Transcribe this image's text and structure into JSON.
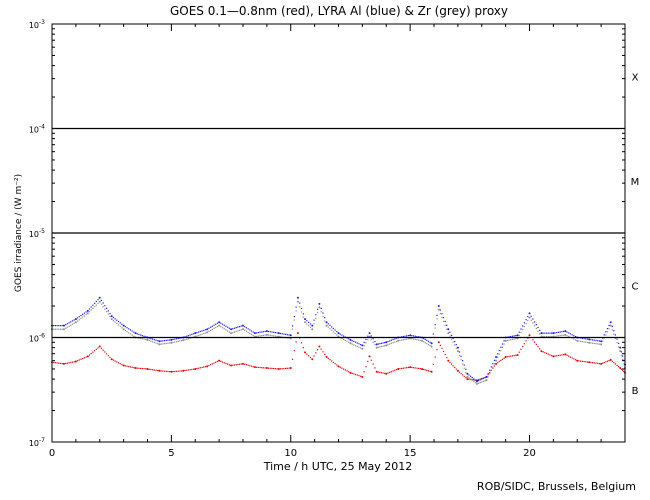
{
  "chart_data": {
    "type": "scatter",
    "title": "GOES 0.1—0.8nm (red), LYRA Al (blue) & Zr (grey) proxy",
    "xlabel": "Time / h UTC, 25 May 2012",
    "ylabel": "GOES irradiance / (W m⁻²)",
    "xlim": [
      0,
      24
    ],
    "ylim": [
      1e-07,
      0.001
    ],
    "yscale": "log",
    "grid": false,
    "x_ticks": [
      0,
      5,
      10,
      15,
      20
    ],
    "y_ticks": [
      {
        "value": 1e-07,
        "base": "10",
        "exp": "-7"
      },
      {
        "value": 1e-06,
        "base": "10",
        "exp": "-6"
      },
      {
        "value": 1e-05,
        "base": "10",
        "exp": "-5"
      },
      {
        "value": 0.0001,
        "base": "10",
        "exp": "-4"
      },
      {
        "value": 0.001,
        "base": "10",
        "exp": "-3"
      }
    ],
    "threshold_lines": [
      1e-06,
      1e-05,
      0.0001
    ],
    "flare_classes": [
      {
        "label": "X",
        "value": 0.000316
      },
      {
        "label": "M",
        "value": 3.16e-05
      },
      {
        "label": "C",
        "value": 3.16e-06
      },
      {
        "label": "B",
        "value": 3.16e-07
      }
    ],
    "series": [
      {
        "name": "GOES 0.1—0.8nm",
        "color": "#e00000",
        "x": [
          0,
          0.5,
          1.0,
          1.5,
          2.0,
          2.5,
          3.0,
          3.5,
          4.0,
          4.5,
          5.0,
          5.5,
          6.0,
          6.5,
          7.0,
          7.5,
          8.0,
          8.5,
          9.0,
          9.5,
          10.0,
          10.3,
          10.6,
          10.9,
          11.2,
          11.5,
          12.0,
          12.5,
          13.0,
          13.3,
          13.6,
          14.0,
          14.5,
          15.0,
          15.5,
          15.9,
          16.2,
          16.6,
          17.0,
          17.4,
          17.8,
          18.2,
          18.6,
          19.0,
          19.5,
          20.0,
          20.5,
          21.0,
          21.5,
          22.0,
          22.5,
          23.0,
          23.4,
          23.8,
          24.0
        ],
        "y": [
          5.8e-07,
          5.6e-07,
          5.9e-07,
          6.6e-07,
          8.2e-07,
          6.2e-07,
          5.4e-07,
          5.1e-07,
          5e-07,
          4.8e-07,
          4.7e-07,
          4.8e-07,
          5e-07,
          5.3e-07,
          6e-07,
          5.4e-07,
          5.6e-07,
          5.2e-07,
          5.1e-07,
          5e-07,
          5.1e-07,
          1.1e-06,
          7.2e-07,
          6.2e-07,
          8.2e-07,
          6.5e-07,
          5.3e-07,
          4.6e-07,
          4.2e-07,
          6.6e-07,
          4.7e-07,
          4.5e-07,
          5e-07,
          5.2e-07,
          5e-07,
          4.7e-07,
          9e-07,
          6e-07,
          4.8e-07,
          4e-07,
          3.9e-07,
          4.2e-07,
          5.6e-07,
          6.5e-07,
          6.8e-07,
          1.05e-06,
          7.4e-07,
          6.6e-07,
          6.9e-07,
          6e-07,
          5.8e-07,
          5.6e-07,
          6.1e-07,
          5.1e-07,
          4.6e-07
        ]
      },
      {
        "name": "LYRA Al proxy",
        "color": "#1a1aff",
        "x": [
          0,
          0.5,
          1.0,
          1.5,
          2.0,
          2.5,
          3.0,
          3.5,
          4.0,
          4.5,
          5.0,
          5.5,
          6.0,
          6.5,
          7.0,
          7.5,
          8.0,
          8.5,
          9.0,
          9.5,
          10.0,
          10.3,
          10.6,
          10.9,
          11.2,
          11.5,
          12.0,
          12.5,
          13.0,
          13.3,
          13.6,
          14.0,
          14.5,
          15.0,
          15.5,
          15.9,
          16.2,
          16.6,
          17.0,
          17.4,
          17.8,
          18.2,
          18.6,
          19.0,
          19.5,
          20.0,
          20.5,
          21.0,
          21.5,
          22.0,
          22.5,
          23.0,
          23.4,
          23.8,
          24.0
        ],
        "y": [
          1.3e-06,
          1.3e-06,
          1.5e-06,
          1.8e-06,
          2.4e-06,
          1.6e-06,
          1.3e-06,
          1.1e-06,
          1e-06,
          9.2e-07,
          9.5e-07,
          1e-06,
          1.1e-06,
          1.2e-06,
          1.4e-06,
          1.2e-06,
          1.3e-06,
          1.1e-06,
          1.15e-06,
          1.1e-06,
          1.05e-06,
          2.4e-06,
          1.5e-06,
          1.3e-06,
          2.1e-06,
          1.4e-06,
          1.1e-06,
          9.5e-07,
          8.4e-07,
          1.1e-06,
          8.6e-07,
          9e-07,
          1e-06,
          1.05e-06,
          1e-06,
          8.8e-07,
          2e-06,
          1.2e-06,
          8e-07,
          4.5e-07,
          3.8e-07,
          4.2e-07,
          6.5e-07,
          1e-06,
          1.05e-06,
          1.7e-06,
          1.1e-06,
          1.1e-06,
          1.15e-06,
          1e-06,
          9.6e-07,
          9.2e-07,
          1.4e-06,
          8e-07,
          5.5e-07
        ]
      },
      {
        "name": "LYRA Zr proxy",
        "color": "#8c8c8c",
        "x": [
          0,
          0.5,
          1.0,
          1.5,
          2.0,
          2.5,
          3.0,
          3.5,
          4.0,
          4.5,
          5.0,
          5.5,
          6.0,
          6.5,
          7.0,
          7.5,
          8.0,
          8.5,
          9.0,
          9.5,
          10.0,
          10.3,
          10.6,
          10.9,
          11.2,
          11.5,
          12.0,
          12.5,
          13.0,
          13.3,
          13.6,
          14.0,
          14.5,
          15.0,
          15.5,
          15.9,
          16.2,
          16.6,
          17.0,
          17.4,
          17.8,
          18.2,
          18.6,
          19.0,
          19.5,
          20.0,
          20.5,
          21.0,
          21.5,
          22.0,
          22.5,
          23.0,
          23.4,
          23.8,
          24.0
        ],
        "y": [
          1.2e-06,
          1.2e-06,
          1.4e-06,
          1.7e-06,
          2.2e-06,
          1.5e-06,
          1.2e-06,
          1e-06,
          9.5e-07,
          8.6e-07,
          8.9e-07,
          9.4e-07,
          1.02e-06,
          1.12e-06,
          1.3e-06,
          1.1e-06,
          1.2e-06,
          1.02e-06,
          1.06e-06,
          1.02e-06,
          9.8e-07,
          2.2e-06,
          1.4e-06,
          1.2e-06,
          1.95e-06,
          1.3e-06,
          1.02e-06,
          8.8e-07,
          7.8e-07,
          1.02e-06,
          8e-07,
          8.4e-07,
          9.3e-07,
          9.8e-07,
          9.3e-07,
          8.2e-07,
          1.85e-06,
          1.1e-06,
          7.4e-07,
          4.2e-07,
          3.6e-07,
          3.9e-07,
          6e-07,
          9.3e-07,
          9.8e-07,
          1.55e-06,
          1.02e-06,
          1.02e-06,
          1.06e-06,
          9.3e-07,
          8.9e-07,
          8.6e-07,
          1.3e-06,
          7.4e-07,
          5.1e-07
        ]
      }
    ]
  },
  "credit": "ROB/SIDC, Brussels, Belgium"
}
